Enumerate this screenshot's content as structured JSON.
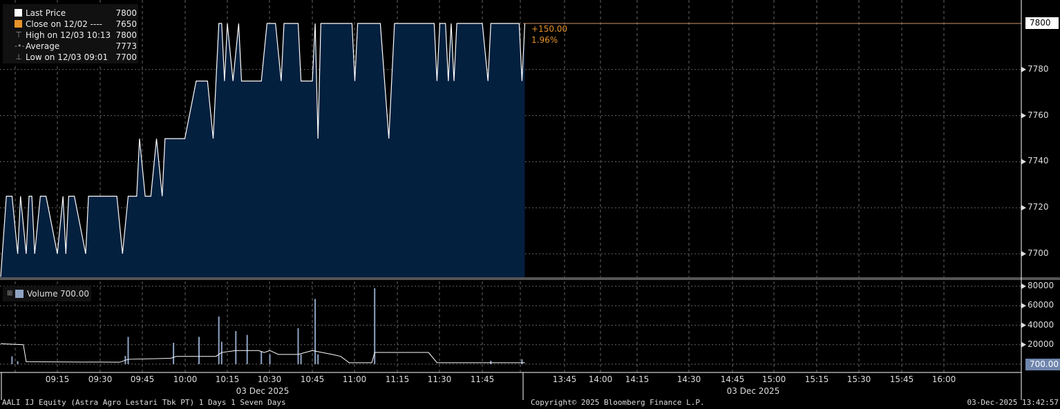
{
  "colors": {
    "fill": "#04203f",
    "line": "#ffffff",
    "close": "#e8932b",
    "volume_bar": "#8fa3c4",
    "grid": "#666666",
    "last_line": "#d4956a"
  },
  "legend": {
    "items": [
      {
        "label": "Last Price",
        "value": "7800",
        "icon": "white-square"
      },
      {
        "label": "Close on 12/02 ----",
        "value": "7650",
        "icon": "orange-square"
      },
      {
        "label": "High on 12/03 10:13",
        "value": "7800",
        "icon": "high-marker"
      },
      {
        "label": "Average",
        "value": "7773",
        "icon": "average-marker"
      },
      {
        "label": "Low on 12/03 09:01",
        "value": "7700",
        "icon": "low-marker"
      }
    ]
  },
  "change": {
    "abs": "+150.00",
    "pct": "1.96%"
  },
  "last_price_tag": "7800",
  "volume_legend": {
    "label": "Volume",
    "value": "700.00"
  },
  "volume_tag": "700.00",
  "footer": {
    "left": "AALI IJ Equity (Astra Agro Lestari Tbk PT) 1 Days 1 Seven Days",
    "center": "Copyright© 2025 Bloomberg Finance L.P.",
    "right": "03-Dec-2025 13:42:57"
  },
  "chart_data": [
    {
      "type": "area",
      "ylim": [
        7690,
        7805
      ],
      "yticks": [
        "7700",
        "7720",
        "7740",
        "7760",
        "7780"
      ],
      "x_date_labels": [
        "03 Dec 2025",
        "03 Dec 2025"
      ],
      "xticks_morning": [
        "09:15",
        "09:30",
        "09:45",
        "10:00",
        "10:15",
        "10:30",
        "10:45",
        "11:00",
        "11:15",
        "11:30",
        "11:45"
      ],
      "xticks_afternoon": [
        "13:45",
        "14:00",
        "14:15",
        "14:30",
        "14:45",
        "15:00",
        "15:15",
        "15:30",
        "15:45",
        "16:00"
      ],
      "grid": true,
      "legend": "top-left",
      "series": [
        {
          "name": "Last Price",
          "points": [
            [
              "08:55",
              7690
            ],
            [
              "08:57",
              7725
            ],
            [
              "08:59",
              7725
            ],
            [
              "09:01",
              7700
            ],
            [
              "09:02",
              7725
            ],
            [
              "09:04",
              7700
            ],
            [
              "09:05",
              7725
            ],
            [
              "09:06",
              7725
            ],
            [
              "09:07",
              7700
            ],
            [
              "09:09",
              7725
            ],
            [
              "09:11",
              7725
            ],
            [
              "09:15",
              7700
            ],
            [
              "09:17",
              7725
            ],
            [
              "09:18",
              7700
            ],
            [
              "09:19",
              7725
            ],
            [
              "09:21",
              7725
            ],
            [
              "09:25",
              7700
            ],
            [
              "09:26",
              7725
            ],
            [
              "09:36",
              7725
            ],
            [
              "09:38",
              7700
            ],
            [
              "09:40",
              7725
            ],
            [
              "09:43",
              7725
            ],
            [
              "09:44",
              7750
            ],
            [
              "09:46",
              7725
            ],
            [
              "09:48",
              7725
            ],
            [
              "09:50",
              7750
            ],
            [
              "09:52",
              7725
            ],
            [
              "09:53",
              7750
            ],
            [
              "10:00",
              7750
            ],
            [
              "10:04",
              7775
            ],
            [
              "10:08",
              7775
            ],
            [
              "10:10",
              7750
            ],
            [
              "10:12",
              7800
            ],
            [
              "10:13",
              7800
            ],
            [
              "10:14",
              7775
            ],
            [
              "10:15",
              7800
            ],
            [
              "10:17",
              7775
            ],
            [
              "10:19",
              7800
            ],
            [
              "10:20",
              7775
            ],
            [
              "10:27",
              7775
            ],
            [
              "10:29",
              7800
            ],
            [
              "10:32",
              7800
            ],
            [
              "10:34",
              7775
            ],
            [
              "10:35",
              7800
            ],
            [
              "10:40",
              7800
            ],
            [
              "10:41",
              7775
            ],
            [
              "10:45",
              7775
            ],
            [
              "10:46",
              7800
            ],
            [
              "10:47",
              7750
            ],
            [
              "10:48",
              7800
            ],
            [
              "10:59",
              7800
            ],
            [
              "11:00",
              7775
            ],
            [
              "11:01",
              7800
            ],
            [
              "11:09",
              7800
            ],
            [
              "11:12",
              7750
            ],
            [
              "11:14",
              7800
            ],
            [
              "11:28",
              7800
            ],
            [
              "11:29",
              7775
            ],
            [
              "11:30",
              7800
            ],
            [
              "11:32",
              7800
            ],
            [
              "11:33",
              7775
            ],
            [
              "11:34",
              7800
            ],
            [
              "11:35",
              7775
            ],
            [
              "11:36",
              7800
            ],
            [
              "11:45",
              7800
            ],
            [
              "11:47",
              7775
            ],
            [
              "11:48",
              7800
            ],
            [
              "11:58",
              7800
            ],
            [
              "11:59",
              7775
            ],
            [
              "12:00",
              7800
            ]
          ]
        }
      ]
    },
    {
      "type": "bar",
      "ylim": [
        0,
        85000
      ],
      "yticks": [
        "20000",
        "40000",
        "60000",
        "80000"
      ],
      "series": [
        {
          "name": "Volume",
          "points": [
            [
              "08:59",
              8000
            ],
            [
              "09:01",
              3000
            ],
            [
              "09:39",
              8500
            ],
            [
              "09:40",
              28000
            ],
            [
              "09:56",
              22000
            ],
            [
              "10:05",
              28000
            ],
            [
              "10:12",
              49000
            ],
            [
              "10:13",
              23000
            ],
            [
              "10:18",
              34000
            ],
            [
              "10:22",
              30000
            ],
            [
              "10:27",
              13000
            ],
            [
              "10:30",
              10000
            ],
            [
              "10:40",
              37000
            ],
            [
              "10:41",
              10000
            ],
            [
              "10:46",
              67000
            ],
            [
              "10:47",
              10000
            ],
            [
              "11:07",
              78000
            ],
            [
              "11:48",
              3500
            ],
            [
              "11:59",
              5000
            ]
          ]
        },
        {
          "points": [
            [
              "08:55",
              21000
            ],
            [
              "09:03",
              20000
            ],
            [
              "09:04",
              2500
            ],
            [
              "09:37",
              2000
            ],
            [
              "09:40",
              5000
            ],
            [
              "09:55",
              6000
            ],
            [
              "09:57",
              8000
            ],
            [
              "10:11",
              8000
            ],
            [
              "10:13",
              12000
            ],
            [
              "10:18",
              14000
            ],
            [
              "10:26",
              14000
            ],
            [
              "10:28",
              12000
            ],
            [
              "10:30",
              14000
            ],
            [
              "10:33",
              10000
            ],
            [
              "10:40",
              10000
            ],
            [
              "10:45",
              14000
            ],
            [
              "10:52",
              10000
            ],
            [
              "10:55",
              8000
            ],
            [
              "10:58",
              1500
            ],
            [
              "11:06",
              1500
            ],
            [
              "11:07",
              12000
            ],
            [
              "11:26",
              12000
            ],
            [
              "11:29",
              1500
            ],
            [
              "12:00",
              1500
            ]
          ]
        }
      ]
    }
  ]
}
